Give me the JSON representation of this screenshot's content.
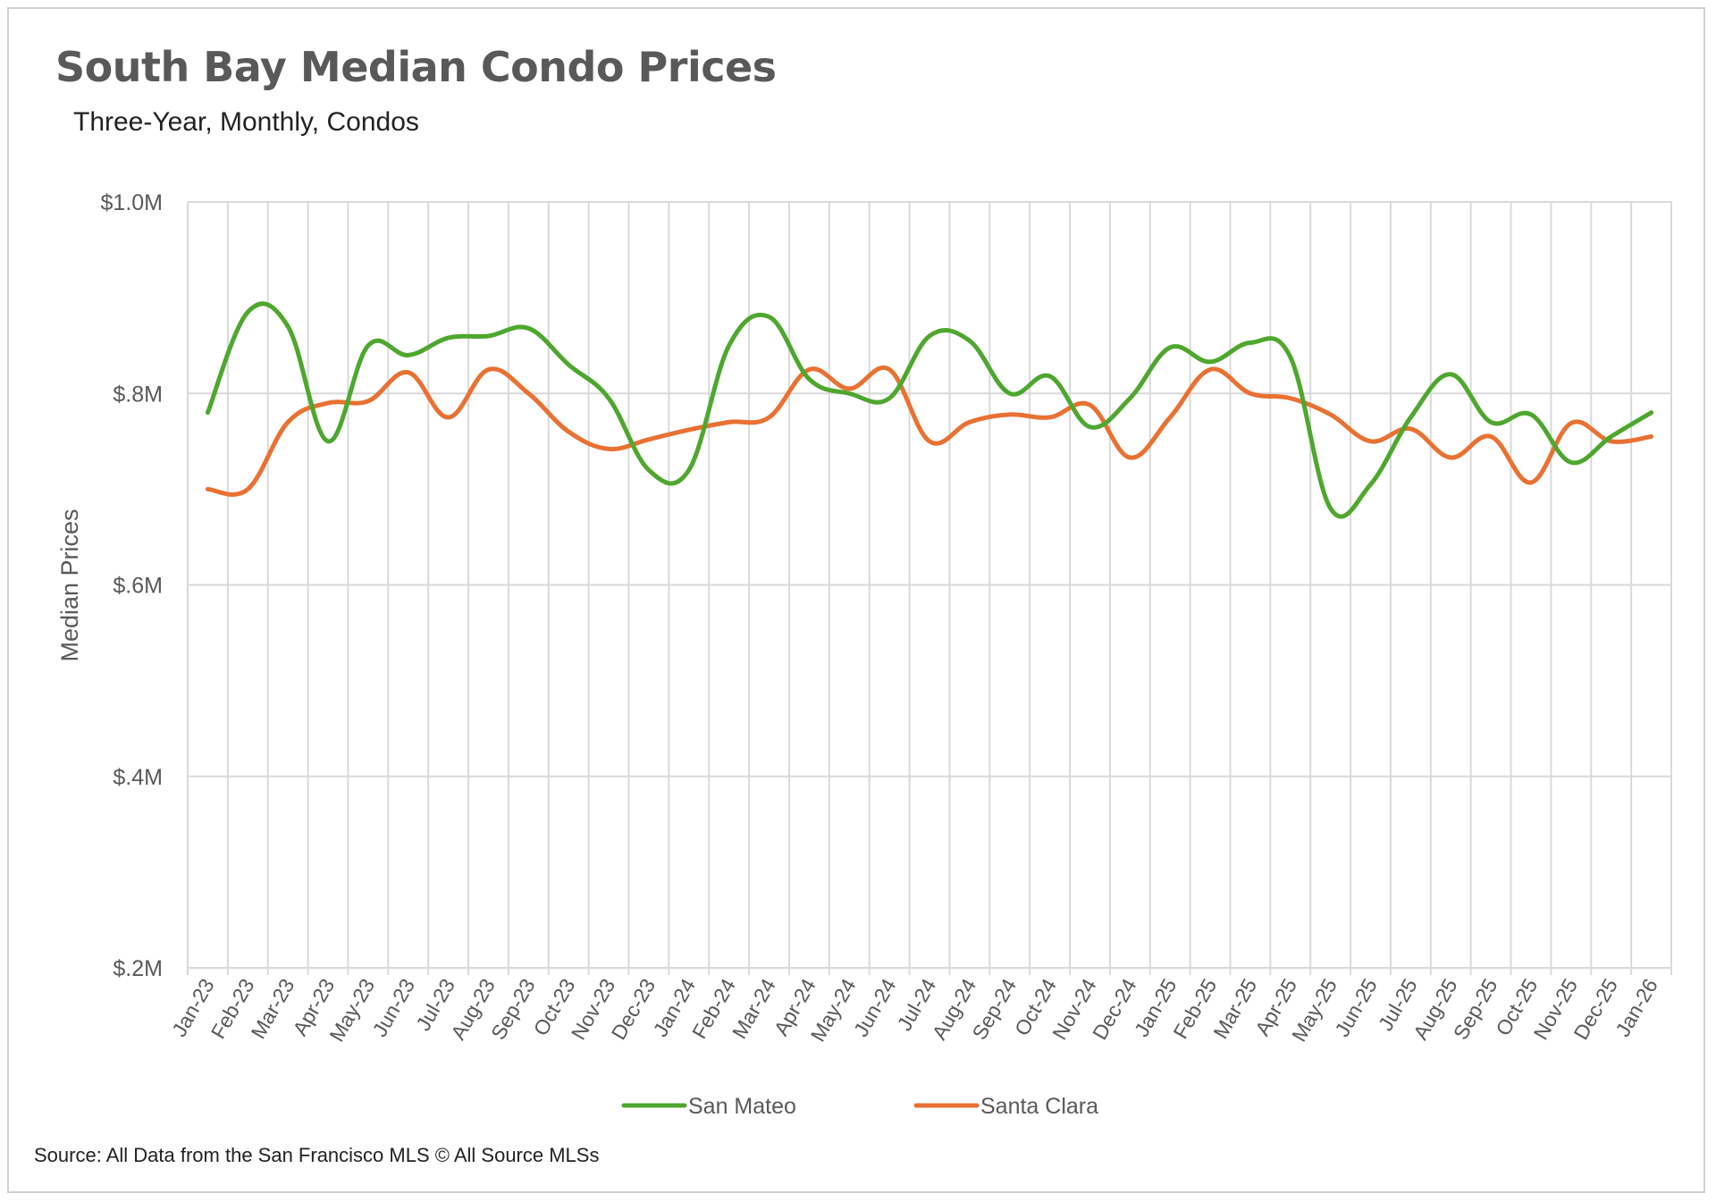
{
  "chart_data": {
    "type": "line",
    "title": "South Bay Median Condo Prices",
    "subtitle": "Three-Year, Monthly, Condos",
    "xlabel": "",
    "ylabel": "Median Prices",
    "ylim": [
      0.2,
      1.0
    ],
    "yticks": [
      {
        "value": 1.0,
        "label": "$1.0M"
      },
      {
        "value": 0.8,
        "label": "$.8M"
      },
      {
        "value": 0.6,
        "label": "$.6M"
      },
      {
        "value": 0.4,
        "label": "$.4M"
      },
      {
        "value": 0.2,
        "label": "$.2M"
      }
    ],
    "categories": [
      "Jan-23",
      "Feb-23",
      "Mar-23",
      "Apr-23",
      "May-23",
      "Jun-23",
      "Jul-23",
      "Aug-23",
      "Sep-23",
      "Oct-23",
      "Nov-23",
      "Dec-23",
      "Jan-24",
      "Feb-24",
      "Mar-24",
      "Apr-24",
      "May-24",
      "Jun-24",
      "Jul-24",
      "Aug-24",
      "Sep-24",
      "Oct-24",
      "Nov-24",
      "Dec-24",
      "Jan-25",
      "Feb-25",
      "Mar-25",
      "Apr-25",
      "May-25",
      "Jun-25",
      "Jul-25",
      "Aug-25",
      "Sep-25",
      "Oct-25",
      "Nov-25",
      "Dec-25",
      "Jan-26"
    ],
    "grid": true,
    "legend_position": "bottom",
    "series": [
      {
        "name": "San Mateo",
        "color": "#4ea72e",
        "values": [
          0.78,
          0.885,
          0.87,
          0.75,
          0.85,
          0.84,
          0.858,
          0.86,
          0.868,
          0.83,
          0.795,
          0.72,
          0.72,
          0.85,
          0.88,
          0.815,
          0.8,
          0.795,
          0.86,
          0.855,
          0.8,
          0.818,
          0.765,
          0.795,
          0.848,
          0.833,
          0.853,
          0.838,
          0.68,
          0.705,
          0.775,
          0.82,
          0.77,
          0.778,
          0.728,
          0.755,
          0.78
        ]
      },
      {
        "name": "Santa Clara",
        "color": "#e97132",
        "values": [
          0.7,
          0.7,
          0.77,
          0.79,
          0.792,
          0.822,
          0.775,
          0.825,
          0.8,
          0.76,
          0.742,
          0.752,
          0.762,
          0.77,
          0.775,
          0.825,
          0.805,
          0.825,
          0.75,
          0.77,
          0.778,
          0.775,
          0.788,
          0.733,
          0.775,
          0.825,
          0.8,
          0.795,
          0.778,
          0.75,
          0.763,
          0.733,
          0.755,
          0.707,
          0.769,
          0.75,
          0.755
        ]
      }
    ]
  },
  "footer": {
    "source": "Source: All Data from the San Francisco MLS © All Source MLSs"
  }
}
